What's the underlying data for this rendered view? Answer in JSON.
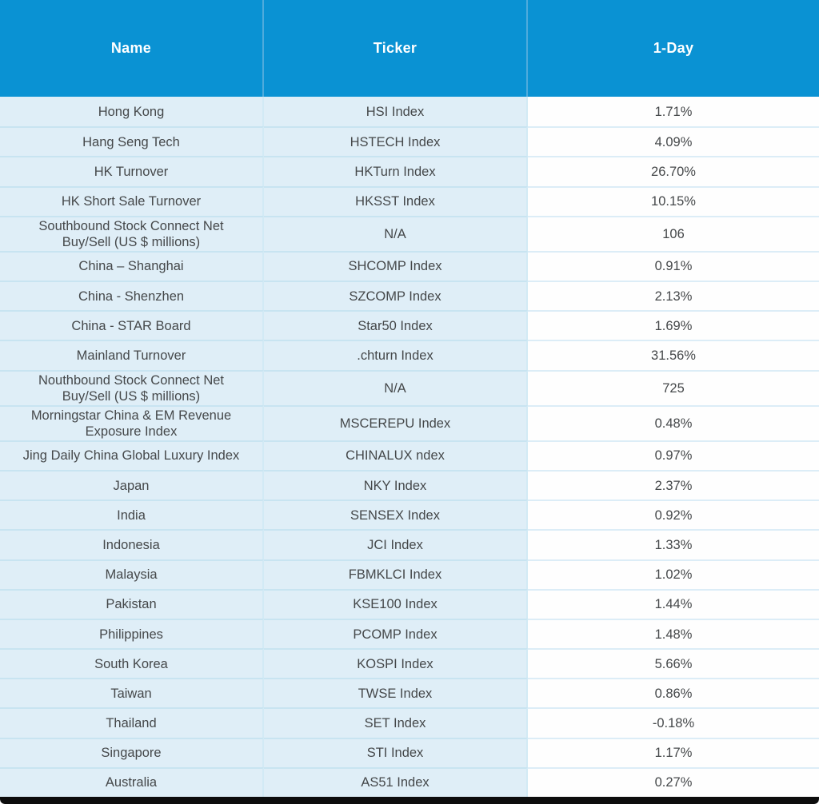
{
  "chart_data": {
    "type": "table",
    "columns": [
      "Name",
      "Ticker",
      "1-Day"
    ],
    "rows": [
      [
        "Hong Kong",
        "HSI Index",
        "1.71%"
      ],
      [
        "Hang Seng Tech",
        "HSTECH Index",
        "4.09%"
      ],
      [
        "HK Turnover",
        "HKTurn Index",
        "26.70%"
      ],
      [
        "HK Short Sale Turnover",
        "HKSST Index",
        "10.15%"
      ],
      [
        "Southbound Stock Connect Net\nBuy/Sell (US $ millions)",
        "N/A",
        "106"
      ],
      [
        "China – Shanghai",
        "SHCOMP Index",
        "0.91%"
      ],
      [
        "China - Shenzhen",
        "SZCOMP Index",
        "2.13%"
      ],
      [
        "China - STAR Board",
        "Star50 Index",
        "1.69%"
      ],
      [
        "Mainland Turnover",
        ".chturn Index",
        "31.56%"
      ],
      [
        "Nouthbound Stock Connect Net\nBuy/Sell (US $ millions)",
        "N/A",
        "725"
      ],
      [
        "Morningstar China & EM Revenue\nExposure Index",
        "MSCEREPU Index",
        "0.48%"
      ],
      [
        "Jing Daily China Global Luxury Index",
        "CHINALUX ndex",
        "0.97%"
      ],
      [
        "Japan",
        "NKY Index",
        "2.37%"
      ],
      [
        "India",
        "SENSEX Index",
        "0.92%"
      ],
      [
        "Indonesia",
        "JCI Index",
        "1.33%"
      ],
      [
        "Malaysia",
        "FBMKLCI Index",
        "1.02%"
      ],
      [
        "Pakistan",
        "KSE100 Index",
        "1.44%"
      ],
      [
        "Philippines",
        "PCOMP Index",
        "1.48%"
      ],
      [
        "South Korea",
        "KOSPI Index",
        "5.66%"
      ],
      [
        "Taiwan",
        "TWSE Index",
        "0.86%"
      ],
      [
        "Thailand",
        "SET Index",
        "-0.18%"
      ],
      [
        "Singapore",
        "STI Index",
        "1.17%"
      ],
      [
        "Australia",
        "AS51 Index",
        "0.27%"
      ]
    ],
    "title": "",
    "legend": null,
    "notes": "Asia market indices 1-day performance table; Name and Ticker columns light blue, 1-Day column white, blue header, black bottom border"
  },
  "colors": {
    "header_bg": "#0a92d3",
    "header_text": "#ffffff",
    "cell_bg_blue": "#dfeef7",
    "cell_bg_white": "#fefefe",
    "row_separator": "#c8e4f1",
    "body_text": "#45484a",
    "bottom_bar": "#0d0d0d"
  }
}
